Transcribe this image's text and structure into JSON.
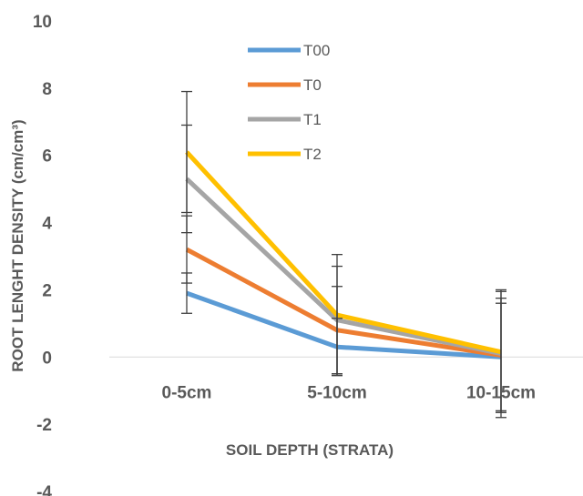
{
  "chart_data": {
    "type": "line",
    "categories": [
      "0-5cm",
      "5-10cm",
      "10-15cm"
    ],
    "xlabel": "SOIL DEPTH (STRATA)",
    "ylabel": "ROOT LENGHT DENSITY (cm/cm³)",
    "ylim": [
      -4,
      10
    ],
    "yticks": [
      -4,
      -2,
      0,
      2,
      4,
      6,
      8,
      10
    ],
    "grid": false,
    "legend_position": "top-center",
    "series": [
      {
        "name": "T00",
        "color": "#5B9BD5",
        "values": [
          1.9,
          0.3,
          0.0
        ],
        "error": [
          0.6,
          0.85,
          1.6
        ]
      },
      {
        "name": "T0",
        "color": "#ED7D31",
        "values": [
          3.2,
          0.8,
          0.05
        ],
        "error": [
          1.0,
          1.3,
          1.7
        ]
      },
      {
        "name": "T1",
        "color": "#A5A5A5",
        "values": [
          5.3,
          1.1,
          0.1
        ],
        "error": [
          1.6,
          1.6,
          1.9
        ]
      },
      {
        "name": "T2",
        "color": "#FFC000",
        "values": [
          6.1,
          1.25,
          0.15
        ],
        "error": [
          1.8,
          1.8,
          1.8
        ]
      }
    ]
  }
}
